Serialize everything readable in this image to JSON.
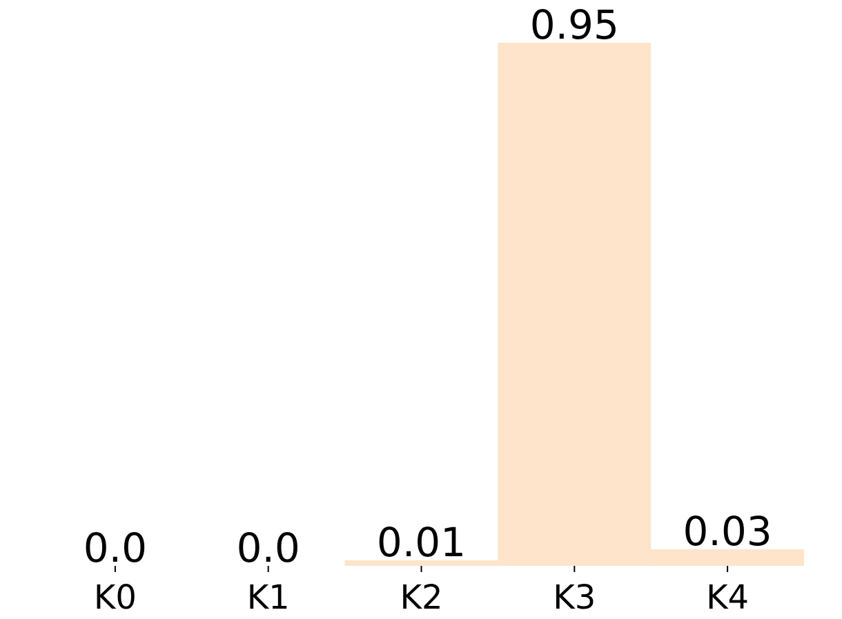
{
  "chart_data": {
    "type": "bar",
    "title": "",
    "xlabel": "",
    "ylabel": "",
    "categories": [
      "K0",
      "K1",
      "K2",
      "K3",
      "K4"
    ],
    "values": [
      0.0,
      0.0,
      0.01,
      0.95,
      0.03
    ],
    "value_labels": [
      "0.0",
      "0.0",
      "0.01",
      "0.95",
      "0.03"
    ],
    "ylim": [
      0,
      0.95
    ],
    "bar_color": "#fde4cb",
    "text_color": "#000000",
    "grid": false,
    "legend": "none"
  }
}
